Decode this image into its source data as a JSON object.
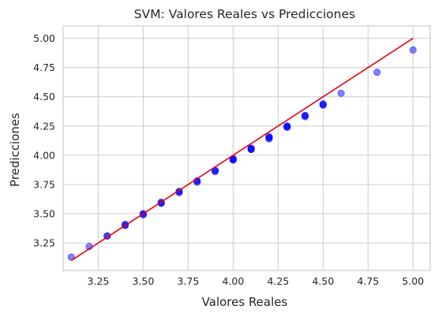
{
  "chart_data": {
    "type": "scatter",
    "title": "SVM: Valores Reales vs Predicciones",
    "xlabel": "Valores Reales",
    "ylabel": "Predicciones",
    "xlim": [
      3.055,
      5.095
    ],
    "ylim": [
      3.015,
      5.105
    ],
    "xticks": [
      3.25,
      3.5,
      3.75,
      4.0,
      4.25,
      4.5,
      4.75,
      5.0
    ],
    "xtick_labels": [
      "3.25",
      "3.50",
      "3.75",
      "4.00",
      "4.25",
      "4.50",
      "4.75",
      "5.00"
    ],
    "yticks": [
      3.25,
      3.5,
      3.75,
      4.0,
      4.25,
      4.5,
      4.75,
      5.0
    ],
    "ytick_labels": [
      "3.25",
      "3.50",
      "3.75",
      "4.00",
      "4.25",
      "4.50",
      "4.75",
      "5.00"
    ],
    "grid": true,
    "colors": {
      "points": "#0000ff",
      "line": "#e8000b",
      "grid": "#cccccc",
      "axes_edge": "#cccccc"
    },
    "series": [
      {
        "kind": "points",
        "opacity": 0.5,
        "points": [
          [
            3.1,
            3.13
          ],
          [
            3.2,
            3.22
          ],
          [
            3.3,
            3.31
          ],
          [
            3.3,
            3.31
          ],
          [
            3.4,
            3.4
          ],
          [
            3.4,
            3.41
          ],
          [
            3.4,
            3.4
          ],
          [
            3.5,
            3.5
          ],
          [
            3.5,
            3.49
          ],
          [
            3.5,
            3.5
          ],
          [
            3.6,
            3.59
          ],
          [
            3.6,
            3.6
          ],
          [
            3.6,
            3.59
          ],
          [
            3.7,
            3.69
          ],
          [
            3.7,
            3.68
          ],
          [
            3.7,
            3.69
          ],
          [
            3.8,
            3.78
          ],
          [
            3.8,
            3.77
          ],
          [
            3.8,
            3.78
          ],
          [
            3.9,
            3.87
          ],
          [
            3.9,
            3.86
          ],
          [
            3.9,
            3.87
          ],
          [
            4.0,
            3.96
          ],
          [
            4.0,
            3.97
          ],
          [
            4.0,
            3.96
          ],
          [
            4.0,
            3.97
          ],
          [
            4.1,
            4.06
          ],
          [
            4.1,
            4.05
          ],
          [
            4.1,
            4.06
          ],
          [
            4.1,
            4.05
          ],
          [
            4.2,
            4.15
          ],
          [
            4.2,
            4.14
          ],
          [
            4.2,
            4.15
          ],
          [
            4.2,
            4.16
          ],
          [
            4.3,
            4.24
          ],
          [
            4.3,
            4.25
          ],
          [
            4.3,
            4.24
          ],
          [
            4.3,
            4.25
          ],
          [
            4.4,
            4.34
          ],
          [
            4.4,
            4.33
          ],
          [
            4.4,
            4.34
          ],
          [
            4.5,
            4.43
          ],
          [
            4.5,
            4.44
          ],
          [
            4.5,
            4.43
          ],
          [
            4.6,
            4.53
          ],
          [
            4.8,
            4.71
          ],
          [
            5.0,
            4.9
          ]
        ]
      },
      {
        "kind": "line",
        "x": [
          3.1,
          5.0
        ],
        "y": [
          3.1,
          5.0
        ]
      }
    ]
  }
}
